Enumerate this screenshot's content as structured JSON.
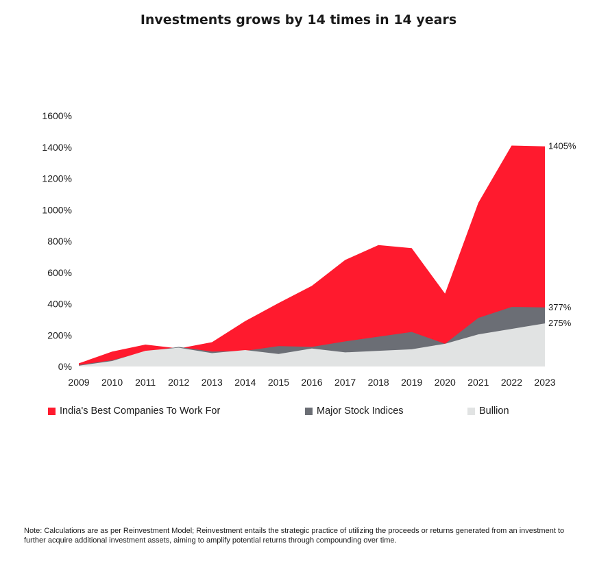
{
  "title": "Investments grows by 14 times in 14 years",
  "chart_data": {
    "type": "area",
    "stacked": false,
    "x": [
      "2009",
      "2010",
      "2011",
      "2012",
      "2013",
      "2014",
      "2015",
      "2016",
      "2017",
      "2018",
      "2019",
      "2020",
      "2021",
      "2022",
      "2023"
    ],
    "series": [
      {
        "name": "India's Best Companies To Work For",
        "color": "#ff1a2e",
        "values": [
          20,
          95,
          140,
          115,
          155,
          290,
          405,
          515,
          680,
          775,
          755,
          465,
          1045,
          1410,
          1405
        ]
      },
      {
        "name": "Major Stock Indices",
        "color": "#6b6e75",
        "values": [
          10,
          40,
          95,
          125,
          95,
          100,
          130,
          125,
          160,
          190,
          220,
          145,
          310,
          380,
          377
        ]
      },
      {
        "name": "Bullion",
        "color": "#e1e3e3",
        "values": [
          5,
          35,
          100,
          120,
          85,
          105,
          80,
          115,
          90,
          100,
          110,
          145,
          205,
          240,
          275
        ]
      }
    ],
    "y_ticks": [
      "0%",
      "200%",
      "400%",
      "600%",
      "800%",
      "1000%",
      "1200%",
      "1400%",
      "1600%"
    ],
    "ylim": [
      0,
      1600
    ],
    "end_labels": [
      "1405%",
      "377%",
      "275%"
    ],
    "legend_position": "bottom"
  },
  "note": "Note: Calculations are as per Reinvestment Model; Reinvestment entails the strategic practice of utilizing the proceeds or returns generated from an investment to further acquire additional investment assets, aiming to amplify potential returns through compounding over time."
}
